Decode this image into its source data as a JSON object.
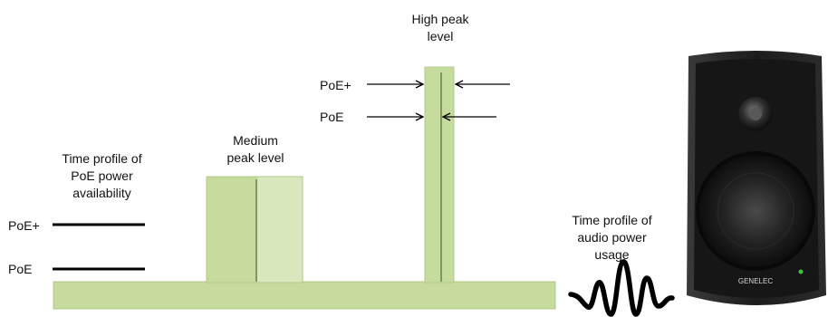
{
  "labels": {
    "availability_title": [
      "Time profile of",
      "PoE power",
      "availability"
    ],
    "poe_plus": "PoE+",
    "poe": "PoE",
    "medium_peak": [
      "Medium",
      "peak level"
    ],
    "high_peak": [
      "High peak",
      "level"
    ],
    "high_poe_plus": "PoE+",
    "high_poe": "PoE",
    "usage_title": [
      "Time profile of",
      "audio power",
      "usage"
    ]
  },
  "speaker": {
    "brand": "GENELEC"
  },
  "colors": {
    "bar": "#c6dc9e",
    "bar_light": "#d8e8bc",
    "bar_edge": "#a9c47c",
    "line": "#000000",
    "speaker_body": "#1e1e1e",
    "led": "#39c43a"
  }
}
